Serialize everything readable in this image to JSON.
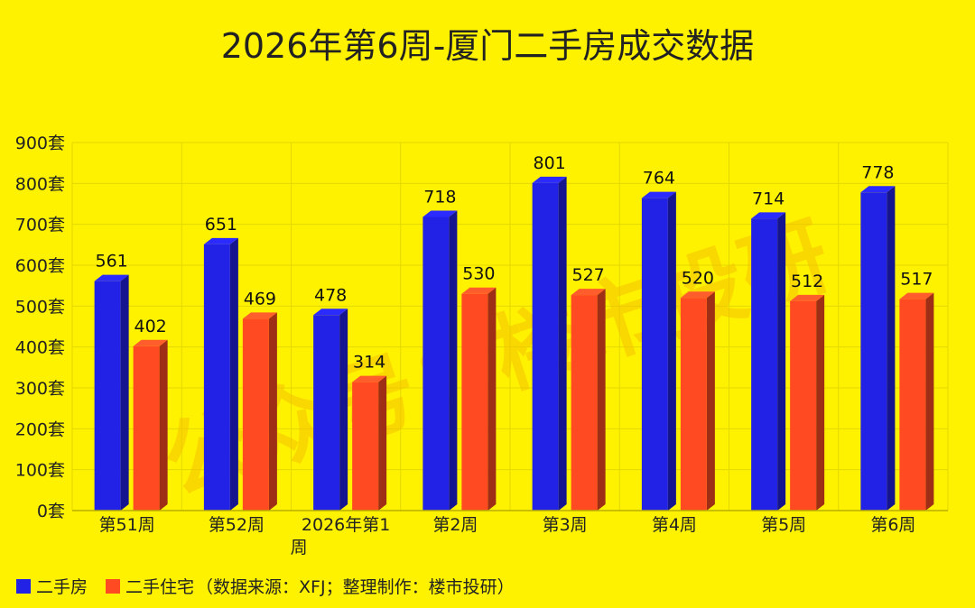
{
  "chart_data": {
    "type": "bar",
    "title": "2026年第6周-厦门二手房成交数据",
    "categories": [
      "第51周",
      "第52周",
      "2026年第1周",
      "第2周",
      "第3周",
      "第4周",
      "第5周",
      "第6周"
    ],
    "series": [
      {
        "name": "二手房",
        "values": [
          561,
          651,
          478,
          718,
          801,
          764,
          714,
          778
        ],
        "color": "#2222E6"
      },
      {
        "name": "二手住宅",
        "values": [
          402,
          469,
          314,
          530,
          527,
          520,
          512,
          517
        ],
        "color": "#FF4A22"
      }
    ],
    "y_ticks": [
      "0套",
      "100套",
      "200套",
      "300套",
      "400套",
      "500套",
      "600套",
      "700套",
      "800套",
      "900套"
    ],
    "ylim": [
      0,
      900
    ],
    "grid": true,
    "legend_position": "bottom-left",
    "note": "（数据来源：XFJ；整理制作：楼市投研）",
    "watermark": "公众号：楼市投研"
  }
}
